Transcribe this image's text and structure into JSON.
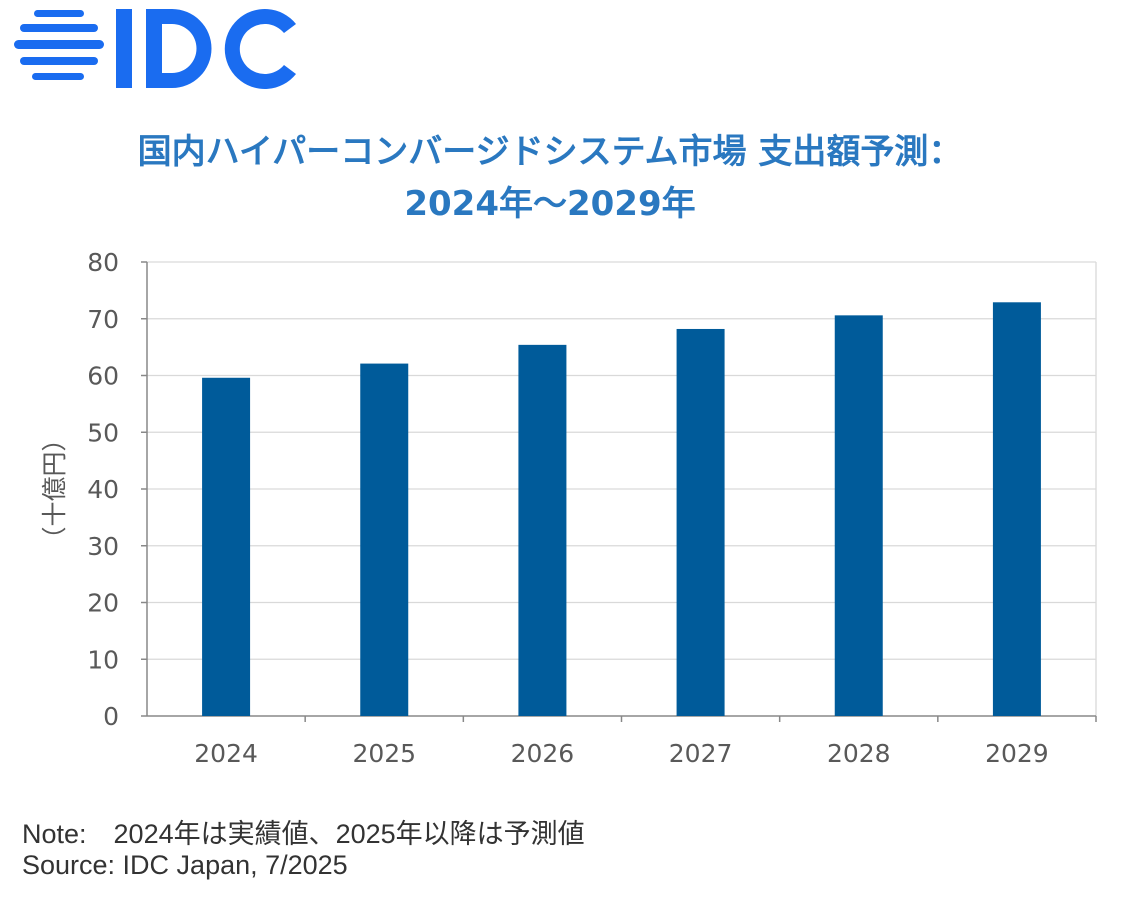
{
  "logo": {
    "text": "IDC",
    "color": "#1a6cf0"
  },
  "title_line1": "国内ハイパーコンバージドシステム市場 支出額予測：",
  "title_line2": "2024年～2029年",
  "chart_data": {
    "type": "bar",
    "title": "国内ハイパーコンバージドシステム市場 支出額予測：2024年～2029年",
    "categories": [
      "2024",
      "2025",
      "2026",
      "2027",
      "2028",
      "2029"
    ],
    "values": [
      59.6,
      62.1,
      65.4,
      68.2,
      70.6,
      72.9
    ],
    "xlabel": "",
    "ylabel": "（十億円）",
    "ylim": [
      0,
      80
    ],
    "yticks": [
      0,
      10,
      20,
      30,
      40,
      50,
      60,
      70,
      80
    ],
    "grid": true,
    "bar_color": "#005b9a"
  },
  "note": "Note:　2024年は実績値、2025年以降は予測値",
  "source": "Source: IDC Japan, 7/2025"
}
